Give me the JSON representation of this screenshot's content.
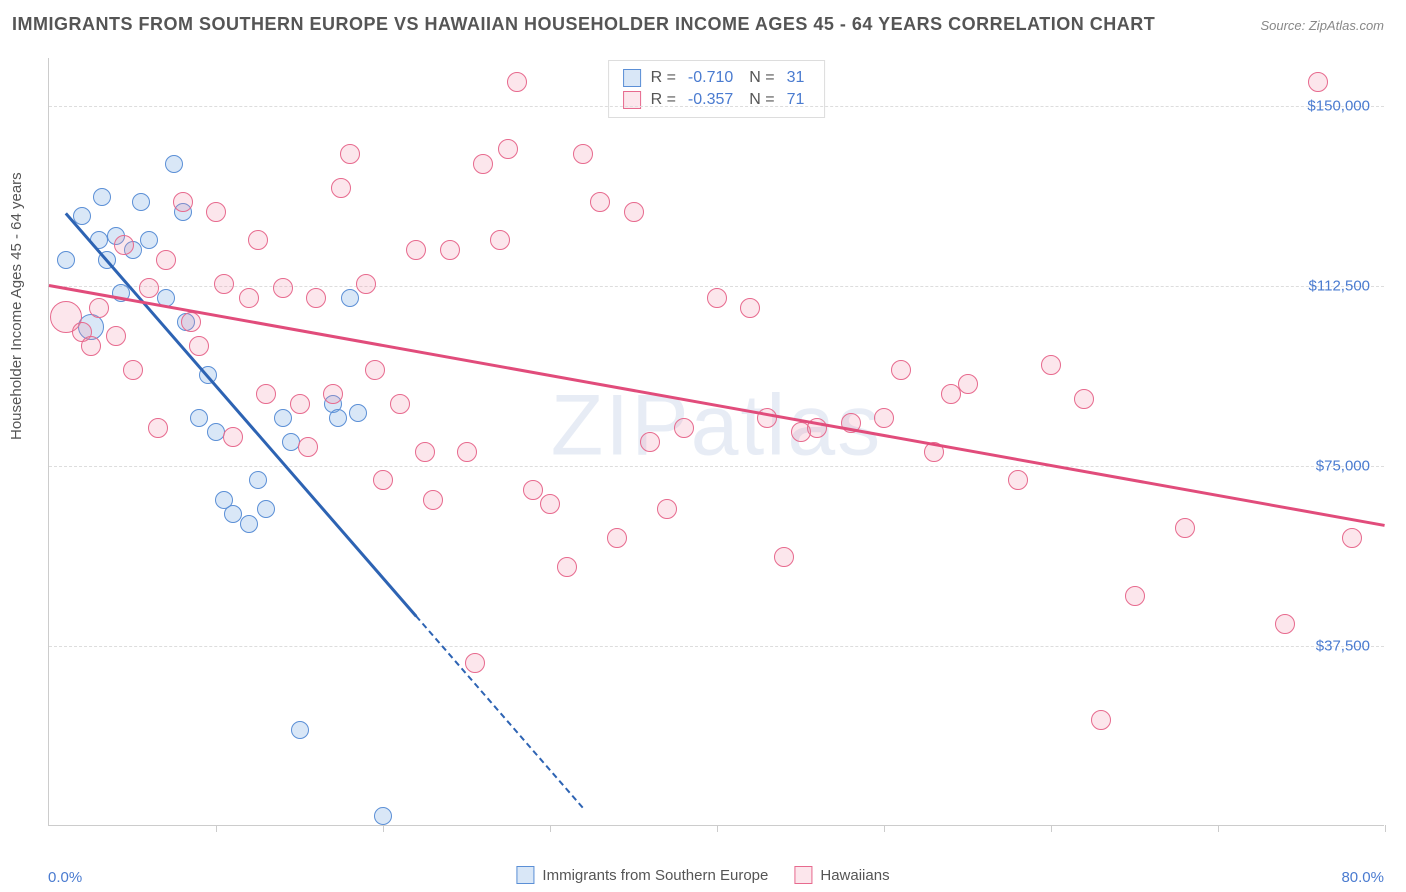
{
  "title": "IMMIGRANTS FROM SOUTHERN EUROPE VS HAWAIIAN HOUSEHOLDER INCOME AGES 45 - 64 YEARS CORRELATION CHART",
  "source": "Source: ZipAtlas.com",
  "watermark": {
    "z": "Z",
    "ip": "IP",
    "atlas": "atlas"
  },
  "chart": {
    "type": "scatter",
    "background_color": "#ffffff",
    "grid_color": "#dddddd",
    "axis_color": "#cccccc",
    "y_axis_title": "Householder Income Ages 45 - 64 years",
    "title_fontsize": 18,
    "label_fontsize": 15,
    "tick_label_color": "#4a7bd0",
    "xlim": [
      0,
      80
    ],
    "ylim": [
      0,
      160000
    ],
    "x_ticks": [
      0,
      10,
      20,
      30,
      40,
      50,
      60,
      70,
      80
    ],
    "y_ticks": [
      {
        "v": 37500,
        "label": "$37,500"
      },
      {
        "v": 75000,
        "label": "$75,000"
      },
      {
        "v": 112500,
        "label": "$112,500"
      },
      {
        "v": 150000,
        "label": "$150,000"
      }
    ],
    "x_min_label": "0.0%",
    "x_max_label": "80.0%",
    "series": [
      {
        "id": "southern_europe",
        "label": "Immigrants from Southern Europe",
        "stroke": "#5b8fd6",
        "fill": "rgba(120,170,225,0.28)",
        "r_label": "R =",
        "r_value": "-0.710",
        "n_label": "N =",
        "n_value": "31",
        "marker_radius": 9,
        "trend": {
          "x1": 1,
          "y1": 128000,
          "x2": 22,
          "y2": 44000,
          "dash_to_x": 32,
          "color": "#2d63b3"
        },
        "points": [
          {
            "x": 1,
            "y": 118000
          },
          {
            "x": 2,
            "y": 127000
          },
          {
            "x": 2.5,
            "y": 104000,
            "r": 13
          },
          {
            "x": 3,
            "y": 122000
          },
          {
            "x": 3.2,
            "y": 131000
          },
          {
            "x": 3.5,
            "y": 118000
          },
          {
            "x": 4,
            "y": 123000
          },
          {
            "x": 4.3,
            "y": 111000
          },
          {
            "x": 5,
            "y": 120000
          },
          {
            "x": 5.5,
            "y": 130000
          },
          {
            "x": 6,
            "y": 122000
          },
          {
            "x": 7,
            "y": 110000
          },
          {
            "x": 7.5,
            "y": 138000
          },
          {
            "x": 8,
            "y": 128000
          },
          {
            "x": 8.2,
            "y": 105000
          },
          {
            "x": 9,
            "y": 85000
          },
          {
            "x": 9.5,
            "y": 94000
          },
          {
            "x": 10,
            "y": 82000
          },
          {
            "x": 10.5,
            "y": 68000
          },
          {
            "x": 11,
            "y": 65000
          },
          {
            "x": 12,
            "y": 63000
          },
          {
            "x": 12.5,
            "y": 72000
          },
          {
            "x": 13,
            "y": 66000
          },
          {
            "x": 14,
            "y": 85000
          },
          {
            "x": 14.5,
            "y": 80000
          },
          {
            "x": 17,
            "y": 88000
          },
          {
            "x": 17.3,
            "y": 85000
          },
          {
            "x": 18.5,
            "y": 86000
          },
          {
            "x": 15,
            "y": 20000
          },
          {
            "x": 20,
            "y": 2000
          },
          {
            "x": 18,
            "y": 110000
          }
        ]
      },
      {
        "id": "hawaiians",
        "label": "Hawaiians",
        "stroke": "#e76a8e",
        "fill": "rgba(240,140,170,0.22)",
        "r_label": "R =",
        "r_value": "-0.357",
        "n_label": "N =",
        "n_value": "71",
        "marker_radius": 10,
        "trend": {
          "x1": 0,
          "y1": 113000,
          "x2": 80,
          "y2": 63000,
          "color": "#e14c7b"
        },
        "points": [
          {
            "x": 1,
            "y": 106000,
            "r": 16
          },
          {
            "x": 2,
            "y": 103000
          },
          {
            "x": 2.5,
            "y": 100000
          },
          {
            "x": 3,
            "y": 108000
          },
          {
            "x": 4,
            "y": 102000
          },
          {
            "x": 4.5,
            "y": 121000
          },
          {
            "x": 5,
            "y": 95000
          },
          {
            "x": 6,
            "y": 112000
          },
          {
            "x": 6.5,
            "y": 83000
          },
          {
            "x": 7,
            "y": 118000
          },
          {
            "x": 8,
            "y": 130000
          },
          {
            "x": 8.5,
            "y": 105000
          },
          {
            "x": 9,
            "y": 100000
          },
          {
            "x": 10,
            "y": 128000
          },
          {
            "x": 10.5,
            "y": 113000
          },
          {
            "x": 11,
            "y": 81000
          },
          {
            "x": 12,
            "y": 110000
          },
          {
            "x": 12.5,
            "y": 122000
          },
          {
            "x": 13,
            "y": 90000
          },
          {
            "x": 14,
            "y": 112000
          },
          {
            "x": 15,
            "y": 88000
          },
          {
            "x": 15.5,
            "y": 79000
          },
          {
            "x": 16,
            "y": 110000
          },
          {
            "x": 17,
            "y": 90000
          },
          {
            "x": 17.5,
            "y": 133000
          },
          {
            "x": 18,
            "y": 140000
          },
          {
            "x": 19,
            "y": 113000
          },
          {
            "x": 19.5,
            "y": 95000
          },
          {
            "x": 20,
            "y": 72000
          },
          {
            "x": 21,
            "y": 88000
          },
          {
            "x": 22,
            "y": 120000
          },
          {
            "x": 22.5,
            "y": 78000
          },
          {
            "x": 23,
            "y": 68000
          },
          {
            "x": 24,
            "y": 120000
          },
          {
            "x": 25,
            "y": 78000
          },
          {
            "x": 25.5,
            "y": 34000
          },
          {
            "x": 26,
            "y": 138000
          },
          {
            "x": 27,
            "y": 122000
          },
          {
            "x": 27.5,
            "y": 141000
          },
          {
            "x": 28,
            "y": 155000
          },
          {
            "x": 29,
            "y": 70000
          },
          {
            "x": 30,
            "y": 67000
          },
          {
            "x": 31,
            "y": 54000
          },
          {
            "x": 32,
            "y": 140000
          },
          {
            "x": 33,
            "y": 130000
          },
          {
            "x": 34,
            "y": 60000
          },
          {
            "x": 35,
            "y": 128000
          },
          {
            "x": 36,
            "y": 80000
          },
          {
            "x": 37,
            "y": 66000
          },
          {
            "x": 38,
            "y": 83000
          },
          {
            "x": 40,
            "y": 110000
          },
          {
            "x": 42,
            "y": 108000
          },
          {
            "x": 43,
            "y": 85000
          },
          {
            "x": 44,
            "y": 56000
          },
          {
            "x": 45,
            "y": 82000
          },
          {
            "x": 46,
            "y": 83000
          },
          {
            "x": 48,
            "y": 84000
          },
          {
            "x": 50,
            "y": 85000
          },
          {
            "x": 51,
            "y": 95000
          },
          {
            "x": 53,
            "y": 78000
          },
          {
            "x": 54,
            "y": 90000
          },
          {
            "x": 55,
            "y": 92000
          },
          {
            "x": 58,
            "y": 72000
          },
          {
            "x": 60,
            "y": 96000
          },
          {
            "x": 62,
            "y": 89000
          },
          {
            "x": 63,
            "y": 22000
          },
          {
            "x": 65,
            "y": 48000
          },
          {
            "x": 68,
            "y": 62000
          },
          {
            "x": 74,
            "y": 42000
          },
          {
            "x": 76,
            "y": 155000
          },
          {
            "x": 78,
            "y": 60000
          }
        ]
      }
    ]
  }
}
